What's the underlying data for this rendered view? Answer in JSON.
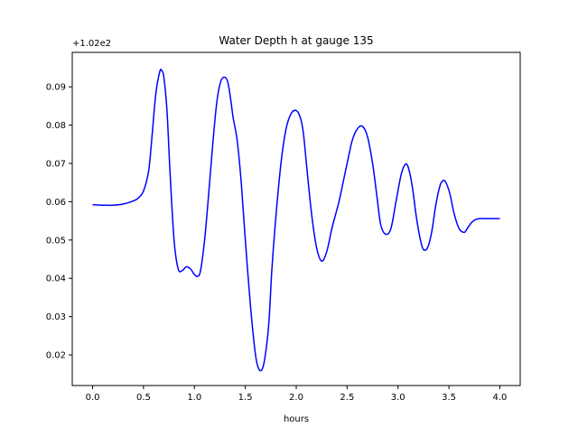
{
  "chart_data": {
    "type": "line",
    "title": "Water Depth h at gauge 135",
    "xlabel": "hours",
    "ylabel": "",
    "y_offset_label": "+1.02e2",
    "y_offset": 102,
    "xlim": [
      -0.2,
      4.2
    ],
    "ylim": [
      0.012,
      0.099
    ],
    "xticks": [
      0.0,
      0.5,
      1.0,
      1.5,
      2.0,
      2.5,
      3.0,
      3.5,
      4.0
    ],
    "xtick_labels": [
      "0.0",
      "0.5",
      "1.0",
      "1.5",
      "2.0",
      "2.5",
      "3.0",
      "3.5",
      "4.0"
    ],
    "yticks": [
      0.02,
      0.03,
      0.04,
      0.05,
      0.06,
      0.07,
      0.08,
      0.09
    ],
    "ytick_labels": [
      "0.02",
      "0.03",
      "0.04",
      "0.05",
      "0.06",
      "0.07",
      "0.08",
      "0.09"
    ],
    "grid": false,
    "series": [
      {
        "color": "#0000ff",
        "x": [
          0.0,
          0.1,
          0.2,
          0.3,
          0.4,
          0.45,
          0.5,
          0.55,
          0.58,
          0.62,
          0.66,
          0.68,
          0.7,
          0.73,
          0.76,
          0.8,
          0.84,
          0.88,
          0.92,
          0.96,
          1.0,
          1.03,
          1.06,
          1.1,
          1.14,
          1.18,
          1.22,
          1.26,
          1.3,
          1.33,
          1.36,
          1.38,
          1.42,
          1.46,
          1.5,
          1.55,
          1.6,
          1.64,
          1.68,
          1.72,
          1.74,
          1.76,
          1.8,
          1.85,
          1.9,
          1.95,
          2.0,
          2.04,
          2.07,
          2.1,
          2.15,
          2.2,
          2.25,
          2.3,
          2.35,
          2.39,
          2.42,
          2.46,
          2.5,
          2.55,
          2.6,
          2.65,
          2.7,
          2.75,
          2.79,
          2.83,
          2.88,
          2.93,
          2.98,
          3.03,
          3.07,
          3.1,
          3.14,
          3.18,
          3.22,
          3.25,
          3.29,
          3.33,
          3.37,
          3.41,
          3.44,
          3.47,
          3.51,
          3.55,
          3.6,
          3.65,
          3.68,
          3.72,
          3.76,
          3.8,
          3.84,
          3.88,
          3.92,
          3.96,
          4.0
        ],
        "y": [
          0.0592,
          0.0591,
          0.0591,
          0.0594,
          0.0602,
          0.061,
          0.0628,
          0.068,
          0.076,
          0.088,
          0.094,
          0.0942,
          0.0925,
          0.084,
          0.068,
          0.05,
          0.0425,
          0.042,
          0.043,
          0.0425,
          0.041,
          0.0405,
          0.042,
          0.05,
          0.062,
          0.075,
          0.086,
          0.0915,
          0.0925,
          0.091,
          0.086,
          0.082,
          0.076,
          0.065,
          0.05,
          0.033,
          0.02,
          0.016,
          0.0175,
          0.025,
          0.032,
          0.042,
          0.056,
          0.07,
          0.079,
          0.083,
          0.0838,
          0.082,
          0.078,
          0.07,
          0.057,
          0.048,
          0.0445,
          0.047,
          0.053,
          0.057,
          0.06,
          0.065,
          0.07,
          0.076,
          0.079,
          0.0797,
          0.077,
          0.07,
          0.062,
          0.054,
          0.0515,
          0.053,
          0.06,
          0.067,
          0.0697,
          0.069,
          0.064,
          0.056,
          0.05,
          0.0475,
          0.048,
          0.052,
          0.059,
          0.064,
          0.0655,
          0.065,
          0.062,
          0.057,
          0.053,
          0.052,
          0.053,
          0.0545,
          0.0553,
          0.0556,
          0.0556,
          0.0556,
          0.0556,
          0.0556,
          0.0556
        ]
      }
    ]
  }
}
